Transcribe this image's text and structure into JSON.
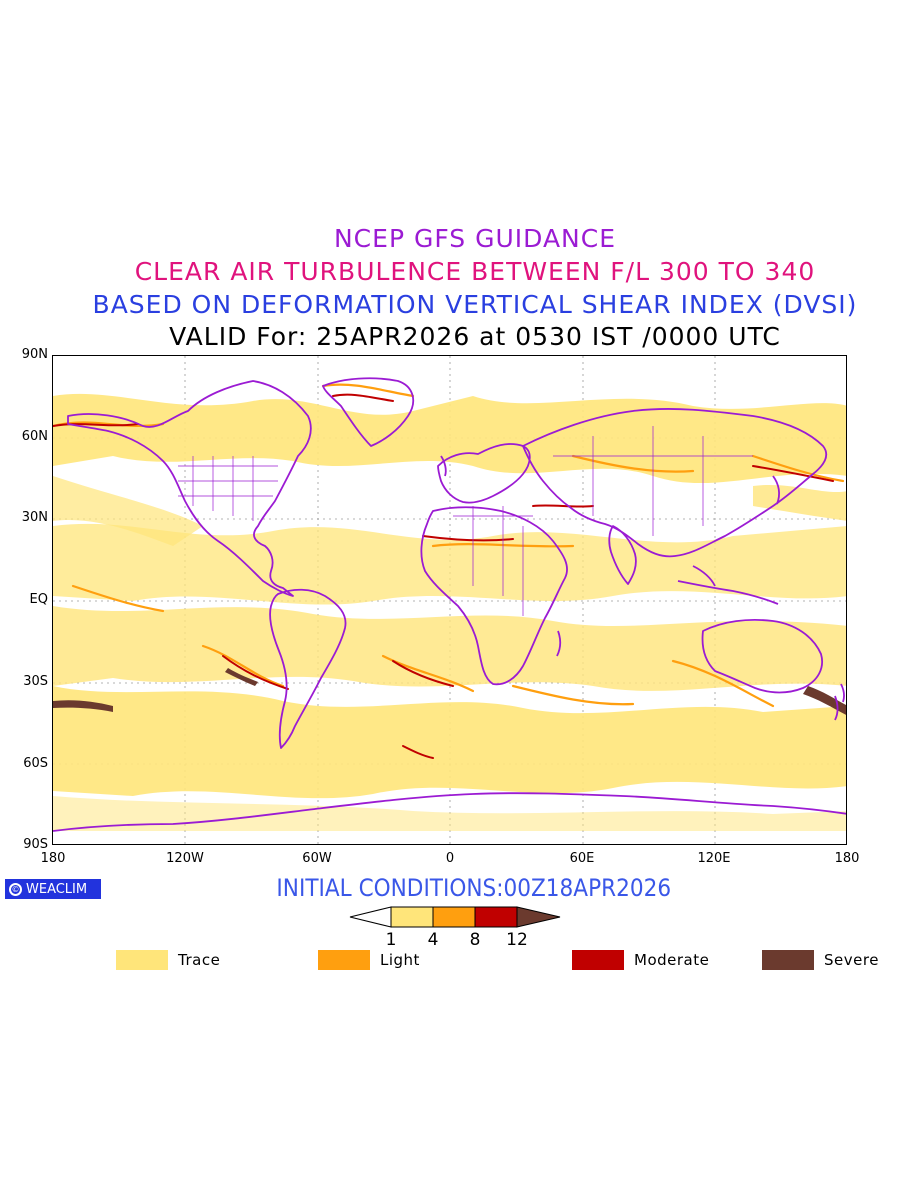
{
  "titles": {
    "line1": "NCEP GFS GUIDANCE",
    "line2": "CLEAR AIR TURBULENCE BETWEEN F/L 300 TO 340",
    "line3": "BASED ON DEFORMATION VERTICAL SHEAR INDEX (DVSI)",
    "line4": "VALID For: 25APR2026 at 0530 IST /0000 UTC"
  },
  "axes": {
    "lat_labels": [
      "90N",
      "60N",
      "30N",
      "EQ",
      "30S",
      "60S",
      "90S"
    ],
    "lon_labels": [
      "180",
      "120W",
      "60W",
      "0",
      "60E",
      "120E",
      "180"
    ]
  },
  "branding": {
    "logo_text": "WEACLIM"
  },
  "initial_conditions": "INITIAL CONDITIONS:00Z18APR2026",
  "colorbar": {
    "ticks": [
      "1",
      "4",
      "8",
      "12"
    ],
    "colors": [
      "#ffffff",
      "#ffe57a",
      "#ff9f0f",
      "#c00000",
      "#6b3a2e"
    ]
  },
  "legend": [
    {
      "label": "Trace",
      "color": "#ffe57a"
    },
    {
      "label": "Light",
      "color": "#ff9f0f"
    },
    {
      "label": "Moderate",
      "color": "#c00000"
    },
    {
      "label": "Severe",
      "color": "#6b3a2e"
    }
  ],
  "map_colors": {
    "coastline": "#9b1bd3",
    "trace": "#ffe57a",
    "light": "#ff9f0f",
    "moderate": "#c00000",
    "severe": "#6b3a2e"
  }
}
